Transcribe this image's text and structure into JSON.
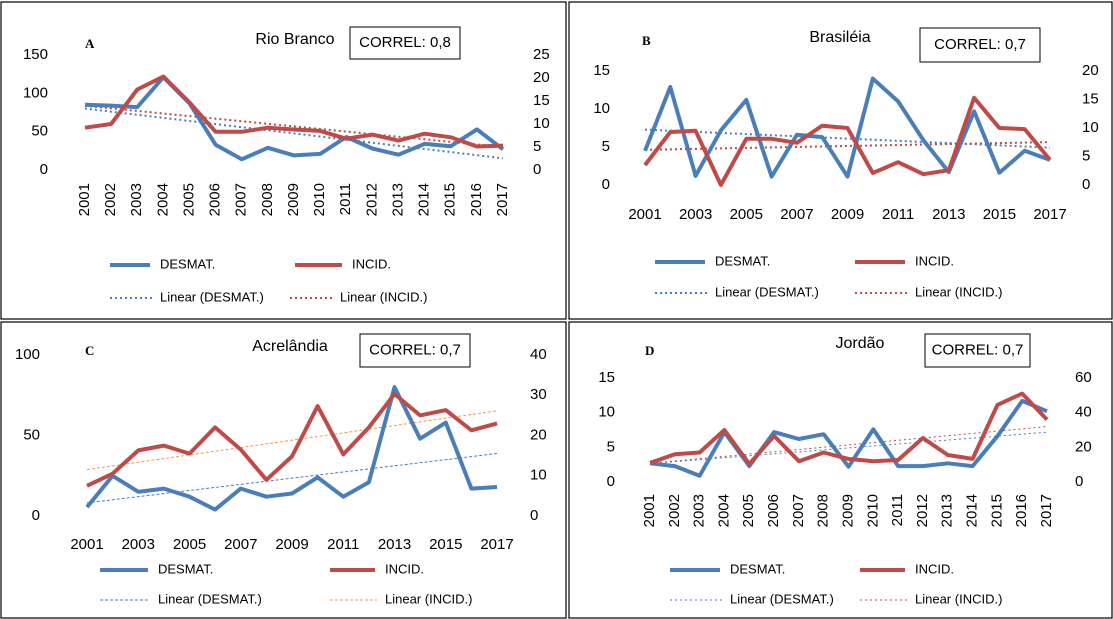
{
  "chart_data": [
    {
      "type": "line",
      "label": "A",
      "title": "Rio Branco",
      "annotation": "CORREL: 0,8",
      "categories": [
        2001,
        2002,
        2003,
        2004,
        2005,
        2006,
        2007,
        2008,
        2009,
        2010,
        2011,
        2012,
        2013,
        2014,
        2015,
        2016,
        2017
      ],
      "series": [
        {
          "name": "DESMAT.",
          "color": "#4a7ebb",
          "axis": "y",
          "values": [
            85,
            84,
            82,
            121,
            87,
            33,
            14,
            29,
            19,
            21,
            43,
            28,
            20,
            34,
            31,
            53,
            27
          ],
          "trendline": {
            "name": "Linear (DESMAT.)",
            "color": "#4a7ebb"
          }
        },
        {
          "name": "INCID.",
          "color": "#be4b48",
          "axis": "y2",
          "values": [
            9.2,
            10,
            17.5,
            20.3,
            14.7,
            8.3,
            8.3,
            9.2,
            8.8,
            8.5,
            6.8,
            7.7,
            6.4,
            7.9,
            7.1,
            5.1,
            5.3
          ],
          "trendline": {
            "name": "Linear (INCID.)",
            "color": "#be4b48"
          }
        }
      ],
      "ylim": [
        0,
        150
      ],
      "yticks": [
        0,
        50,
        100,
        150
      ],
      "y2lim": [
        0,
        25
      ],
      "y2ticks": [
        0,
        5,
        10,
        15,
        20,
        25
      ]
    },
    {
      "type": "line",
      "label": "B",
      "title": "Brasiléia",
      "annotation": "CORREL: 0,7",
      "categories": [
        2001,
        null,
        2003,
        null,
        2005,
        null,
        2007,
        null,
        2009,
        null,
        2011,
        null,
        2013,
        null,
        2015,
        null,
        2017
      ],
      "series": [
        {
          "name": "DESMAT.",
          "color": "#4a7ebb",
          "axis": "y",
          "values": [
            4.5,
            12.9,
            1.2,
            7.2,
            11.2,
            1.1,
            6.6,
            6.3,
            1.1,
            14,
            11,
            5.9,
            1.7,
            9.7,
            1.6,
            4.5,
            3.3
          ],
          "trendline": {
            "name": "Linear (DESMAT.)",
            "color": "#4a7ebb"
          }
        },
        {
          "name": "INCID.",
          "color": "#be4b48",
          "axis": "y2",
          "values": [
            3.5,
            9.3,
            9.5,
            0,
            8.1,
            8.1,
            7.4,
            10.4,
            10,
            2.1,
            4,
            1.9,
            2.6,
            15.3,
            10,
            9.8,
            4.4
          ],
          "trendline": {
            "name": "Linear (INCID.)",
            "color": "#be4b48"
          }
        }
      ],
      "ylim": [
        0,
        15
      ],
      "yticks": [
        0,
        5,
        10,
        15
      ],
      "y2lim": [
        0,
        20
      ],
      "y2ticks": [
        0,
        5,
        10,
        15,
        20
      ]
    },
    {
      "type": "line",
      "label": "C",
      "title": "Acrelândia",
      "annotation": "CORREL: 0,7",
      "categories": [
        2001,
        null,
        2003,
        null,
        2005,
        null,
        2007,
        null,
        2009,
        null,
        2011,
        null,
        2013,
        null,
        2015,
        null,
        2017
      ],
      "series": [
        {
          "name": "DESMAT.",
          "color": "#4a7ebb",
          "axis": "y",
          "values": [
            5.5,
            25,
            15,
            17,
            12,
            4,
            17,
            12,
            14,
            24,
            12,
            21,
            80,
            48,
            58,
            17,
            18
          ],
          "trendline": {
            "name": "Linear (DESMAT.)",
            "color": "#4a7ebb"
          }
        },
        {
          "name": "INCID.",
          "color": "#be4b48",
          "axis": "y2",
          "values": [
            7.5,
            10.5,
            16.3,
            17.5,
            15.5,
            22,
            16.5,
            9,
            14.8,
            27.3,
            15.3,
            22,
            30.3,
            25,
            26.3,
            21.3,
            23
          ],
          "trendline": {
            "name": "Linear (INCID.)",
            "color": "#f79646"
          }
        }
      ],
      "ylim": [
        0,
        100
      ],
      "yticks": [
        0,
        50,
        100
      ],
      "y2lim": [
        0,
        40
      ],
      "y2ticks": [
        0,
        10,
        20,
        30,
        40
      ]
    },
    {
      "type": "line",
      "label": "D",
      "title": "Jordão",
      "annotation": "CORREL: 0,7",
      "categories": [
        2001,
        2002,
        2003,
        2004,
        2005,
        2006,
        2007,
        2008,
        2009,
        2010,
        2011,
        2012,
        2013,
        2014,
        2015,
        2016,
        2017
      ],
      "series": [
        {
          "name": "DESMAT.",
          "color": "#4a7ebb",
          "axis": "y",
          "values": [
            2.7,
            2.3,
            0.9,
            7.2,
            2.3,
            7.2,
            6.2,
            6.9,
            2.2,
            7.6,
            2.3,
            2.3,
            2.7,
            2.3,
            6.6,
            11.7,
            10.2
          ],
          "trendline": {
            "name": "Linear (DESMAT.)",
            "color": "#4a7ebb"
          }
        },
        {
          "name": "INCID.",
          "color": "#be4b48",
          "axis": "y2",
          "values": [
            11,
            16,
            17,
            30,
            10.4,
            26.6,
            12,
            17,
            13.3,
            12,
            12.7,
            25.4,
            15.6,
            13.3,
            44.5,
            51,
            36
          ],
          "trendline": {
            "name": "Linear (INCID.)",
            "color": "#be4b48"
          }
        }
      ],
      "ylim": [
        0,
        15
      ],
      "yticks": [
        0,
        5,
        10,
        15
      ],
      "y2lim": [
        0,
        60
      ],
      "y2ticks": [
        0,
        20,
        40,
        60
      ]
    }
  ]
}
